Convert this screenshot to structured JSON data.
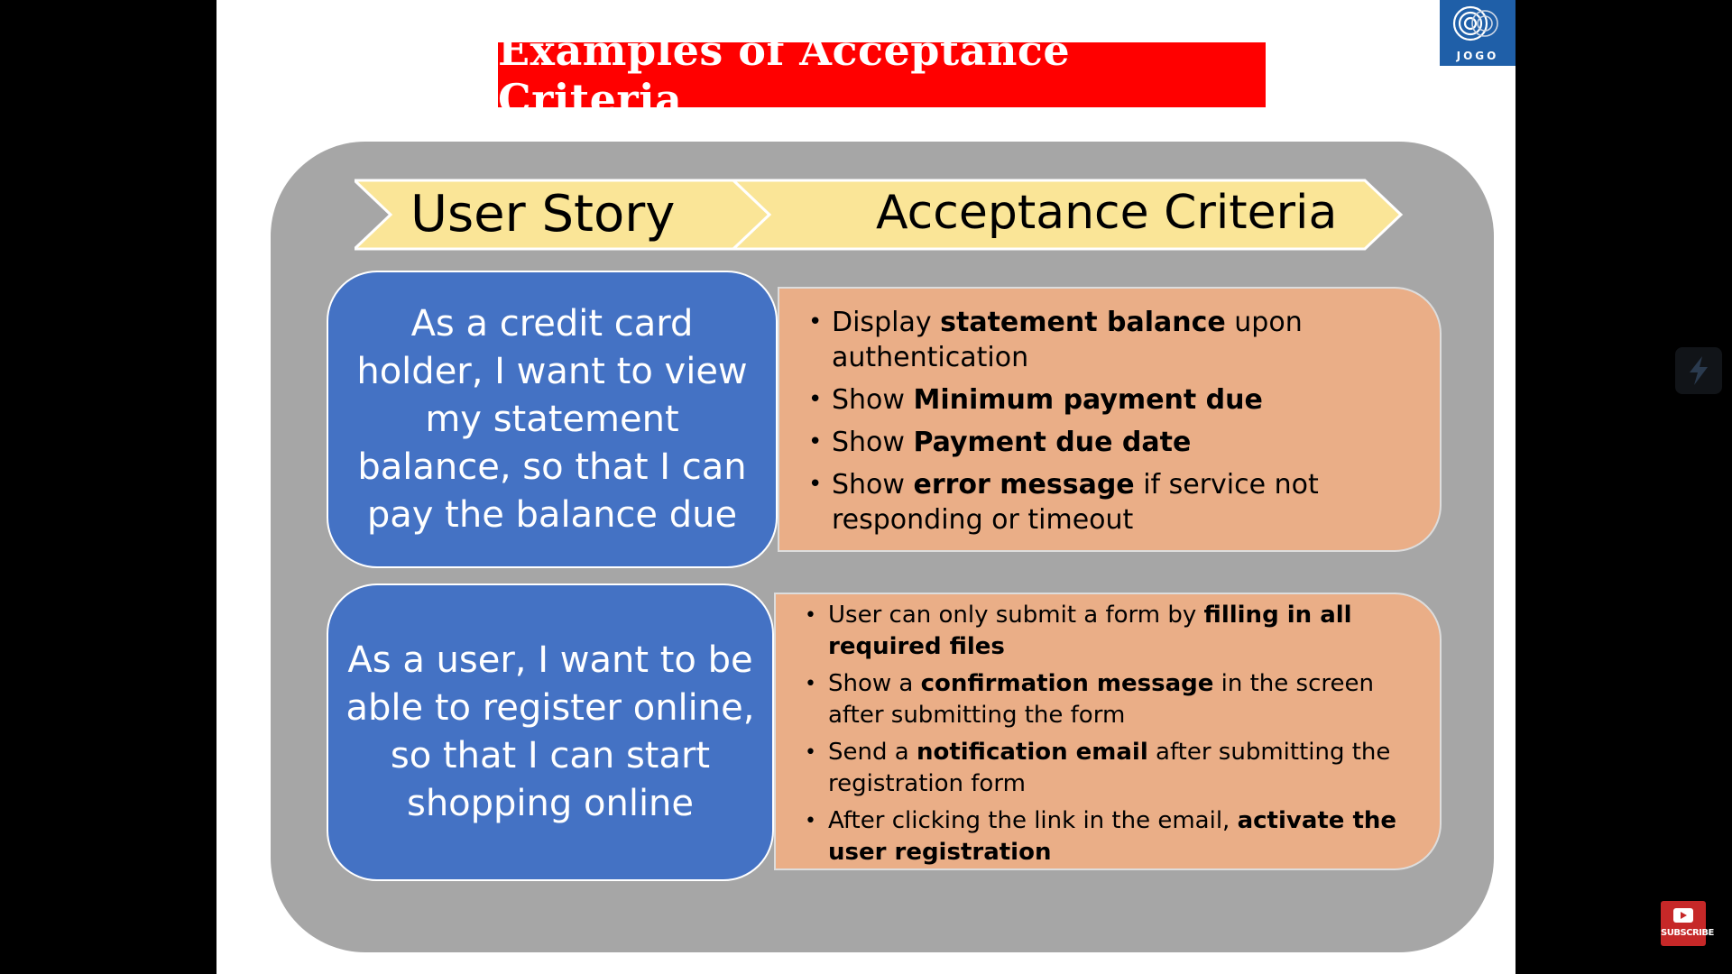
{
  "slide": {
    "title": "Examples of Acceptance Criteria",
    "logo_text": "JOGO",
    "headers": {
      "user_story": "User Story",
      "acceptance_criteria": "Acceptance Criteria"
    },
    "rows": [
      {
        "story": "As a credit card holder, I want to view my statement balance, so that I can pay the balance due",
        "criteria": [
          {
            "pre": "Display ",
            "bold": "statement balance",
            "post": " upon authentication"
          },
          {
            "pre": "Show ",
            "bold": "Minimum payment due",
            "post": ""
          },
          {
            "pre": "Show ",
            "bold": "Payment due date",
            "post": ""
          },
          {
            "pre": "Show ",
            "bold": "error message",
            "post": " if service not responding or timeout"
          }
        ]
      },
      {
        "story": "As a user, I want to be able to register online, so that I can start shopping online",
        "criteria": [
          {
            "pre": "User can only submit a form by ",
            "bold": "filling in all required files",
            "post": ""
          },
          {
            "pre": "Show a ",
            "bold": "confirmation message",
            "post": " in the screen after submitting the form"
          },
          {
            "pre": "Send a ",
            "bold": "notification email",
            "post": " after submitting the registration form"
          },
          {
            "pre": "After clicking the link in the email, ",
            "bold": "activate the user registration",
            "post": ""
          }
        ]
      }
    ]
  },
  "overlay": {
    "side_icon": "lightning-bolt-icon",
    "subscribe_label": "SUBSCRIBE"
  },
  "colors": {
    "title_bg": "#ff0000",
    "panel_bg": "#a6a6a6",
    "arrow_fill": "#fae597",
    "story_bg": "#4472c4",
    "criteria_bg": "#eaae87",
    "logo_bg": "#1f5fa8"
  }
}
